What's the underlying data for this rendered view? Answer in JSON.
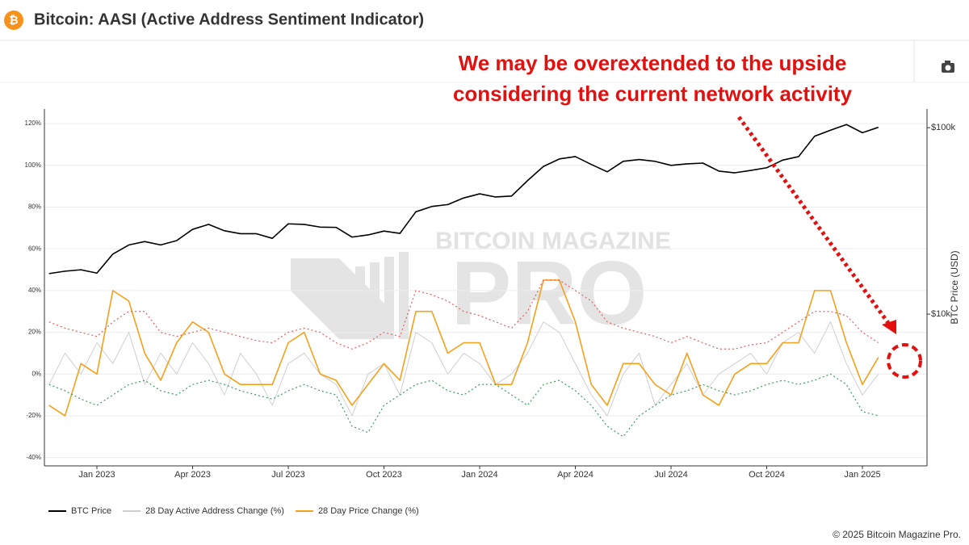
{
  "header": {
    "title": "Bitcoin: AASI (Active Address Sentiment Indicator)"
  },
  "footer": "© 2025 Bitcoin Magazine Pro.",
  "watermark": [
    "BITCOIN MAGAZINE",
    "PRO"
  ],
  "chart_data": {
    "type": "line",
    "annotation": [
      "We may be overextended to the upside",
      "considering the current network activity"
    ],
    "categories": [
      null,
      null,
      null,
      "Jan 2023",
      null,
      null,
      null,
      null,
      null,
      "Apr 2023",
      null,
      null,
      null,
      null,
      null,
      "Jul 2023",
      null,
      null,
      null,
      null,
      null,
      "Oct 2023",
      null,
      null,
      null,
      null,
      null,
      "Jan 2024",
      null,
      null,
      null,
      null,
      null,
      "Apr 2024",
      null,
      null,
      null,
      null,
      null,
      "Jul 2024",
      null,
      null,
      null,
      null,
      null,
      "Oct 2024",
      null,
      null,
      null,
      null,
      null,
      "Jan 2025",
      null
    ],
    "ylim": [
      -44,
      127
    ],
    "yticks": [
      {
        "value": -40,
        "label": "-40%"
      },
      {
        "value": -20,
        "label": "-20%"
      },
      {
        "value": 0,
        "label": "0%"
      },
      {
        "value": 20,
        "label": "20%"
      },
      {
        "value": 40,
        "label": "40%"
      },
      {
        "value": 60,
        "label": "60%"
      },
      {
        "value": 80,
        "label": "80%"
      },
      {
        "value": 100,
        "label": "100%"
      },
      {
        "value": 120,
        "label": "120%"
      }
    ],
    "y2lim": [
      1535,
      126000
    ],
    "y2ticks": [
      {
        "value": 10000,
        "label": "$10k"
      },
      {
        "value": 100000,
        "label": "$100k"
      }
    ],
    "y2log": true,
    "y2label": "BTC Price (USD)",
    "grid": true,
    "legend": "bottom-left",
    "series": [
      {
        "name": "BTC Price",
        "color": "#000000",
        "axis": "y2",
        "values": [
          16500,
          17000,
          17300,
          16600,
          21000,
          23500,
          24500,
          23500,
          24800,
          28500,
          30300,
          28000,
          27000,
          27000,
          25500,
          30500,
          30300,
          29300,
          29200,
          25900,
          26600,
          27900,
          27100,
          35400,
          37800,
          38700,
          42000,
          44200,
          42500,
          43000,
          52000,
          62000,
          68000,
          70000,
          63500,
          58000,
          66000,
          67500,
          66000,
          62800,
          64000,
          64600,
          58500,
          57300,
          59000,
          61000,
          67000,
          70000,
          90000,
          97000,
          104000,
          94000,
          100500
        ]
      },
      {
        "name": "28 Day Active Address Change (%)",
        "color": "#cfcfcf",
        "values": [
          -5,
          10,
          0,
          15,
          5,
          20,
          -5,
          10,
          0,
          15,
          5,
          -10,
          10,
          0,
          -15,
          5,
          10,
          0,
          -5,
          -20,
          0,
          5,
          -10,
          20,
          15,
          0,
          10,
          5,
          -5,
          0,
          10,
          25,
          20,
          5,
          -10,
          -20,
          0,
          10,
          -15,
          -5,
          5,
          -10,
          0,
          5,
          10,
          0,
          15,
          20,
          10,
          25,
          5,
          -10,
          0
        ]
      },
      {
        "name": "28 Day Price Change (%)",
        "color": "#f5a01a",
        "values": [
          -15,
          -20,
          5,
          0,
          40,
          35,
          10,
          -3,
          15,
          25,
          20,
          0,
          -5,
          -5,
          -5,
          15,
          20,
          0,
          -3,
          -15,
          -5,
          5,
          -3,
          30,
          30,
          10,
          15,
          15,
          -5,
          -5,
          15,
          45,
          45,
          25,
          -5,
          -15,
          5,
          5,
          -5,
          -10,
          10,
          -10,
          -15,
          0,
          5,
          5,
          15,
          15,
          40,
          40,
          15,
          -5,
          8
        ]
      },
      {
        "color": "#e06060",
        "dash": true,
        "values": [
          25,
          22,
          20,
          18,
          25,
          30,
          30,
          20,
          18,
          20,
          22,
          20,
          18,
          16,
          15,
          20,
          22,
          20,
          15,
          12,
          15,
          20,
          18,
          40,
          38,
          35,
          30,
          28,
          25,
          22,
          30,
          45,
          45,
          40,
          35,
          25,
          22,
          20,
          18,
          15,
          18,
          15,
          12,
          12,
          14,
          15,
          20,
          25,
          30,
          30,
          28,
          20,
          15
        ]
      },
      {
        "color": "#3f9a5c",
        "dash": true,
        "values": [
          -5,
          -8,
          -12,
          -15,
          -10,
          -5,
          -3,
          -8,
          -10,
          -5,
          -3,
          -5,
          -8,
          -10,
          -12,
          -8,
          -5,
          -8,
          -10,
          -25,
          -28,
          -15,
          -10,
          -5,
          -3,
          -8,
          -10,
          -5,
          -5,
          -10,
          -15,
          -5,
          -3,
          -8,
          -15,
          -25,
          -30,
          -20,
          -15,
          -10,
          -8,
          -5,
          -8,
          -10,
          -8,
          -5,
          -3,
          -5,
          -3,
          0,
          -5,
          -18,
          -20
        ]
      }
    ]
  }
}
